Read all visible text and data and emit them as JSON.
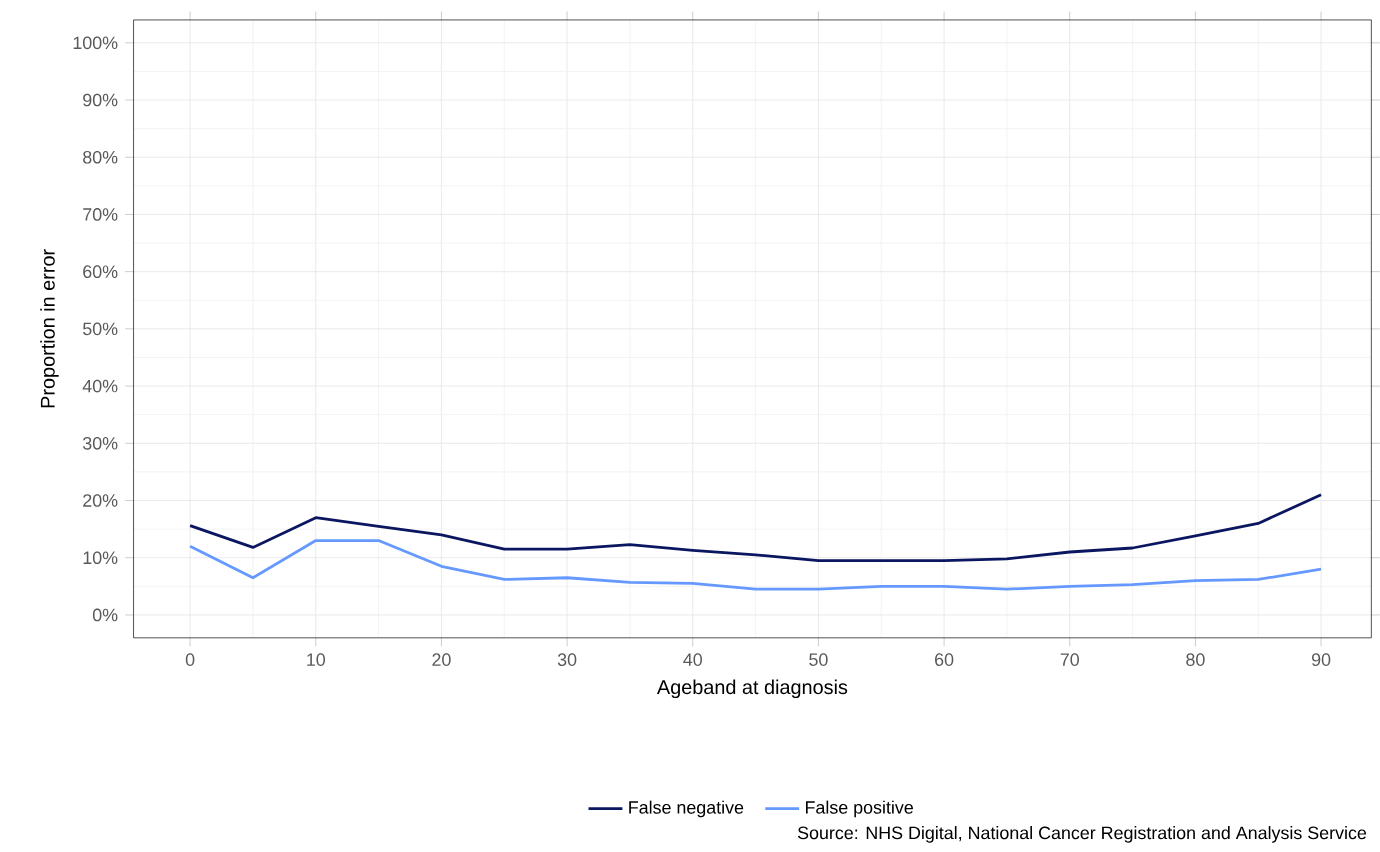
{
  "chart_data": {
    "type": "line",
    "xlabel": "Ageband at diagnosis",
    "ylabel": "Proportion in error",
    "x": [
      0,
      5,
      10,
      15,
      20,
      25,
      30,
      35,
      40,
      45,
      50,
      55,
      60,
      65,
      70,
      75,
      80,
      85,
      90
    ],
    "series": [
      {
        "name": "False negative",
        "color": "#0b1660",
        "values": [
          15.6,
          11.8,
          17,
          15.5,
          14,
          11.5,
          11.5,
          12.3,
          11.3,
          10.5,
          9.5,
          9.5,
          9.5,
          9.8,
          11,
          11.7,
          13.8,
          16,
          21
        ]
      },
      {
        "name": "False positive",
        "color": "#6699ff",
        "values": [
          12,
          6.5,
          13,
          13,
          8.5,
          6.2,
          6.5,
          5.7,
          5.5,
          4.5,
          4.5,
          5,
          5,
          4.5,
          5,
          5.3,
          6,
          6.2,
          8
        ]
      }
    ],
    "xlim": [
      -4.5,
      94
    ],
    "ylim": [
      -4,
      104
    ],
    "xticks": [
      0,
      10,
      20,
      30,
      40,
      50,
      60,
      70,
      80,
      90
    ],
    "yticks": [
      {
        "value": 0,
        "label": "0%"
      },
      {
        "value": 10,
        "label": "10%"
      },
      {
        "value": 20,
        "label": "20%"
      },
      {
        "value": 30,
        "label": "30%"
      },
      {
        "value": 40,
        "label": "40%"
      },
      {
        "value": 50,
        "label": "50%"
      },
      {
        "value": 60,
        "label": "60%"
      },
      {
        "value": 70,
        "label": "70%"
      },
      {
        "value": 80,
        "label": "80%"
      },
      {
        "value": 90,
        "label": "90%"
      },
      {
        "value": 100,
        "label": "100%"
      }
    ],
    "grid": true,
    "legend": "bottom",
    "marker": "none",
    "line_style": "solid",
    "annotations": [
      "Source: NHS Digital, National Cancer Registration and Analysis Service"
    ]
  }
}
